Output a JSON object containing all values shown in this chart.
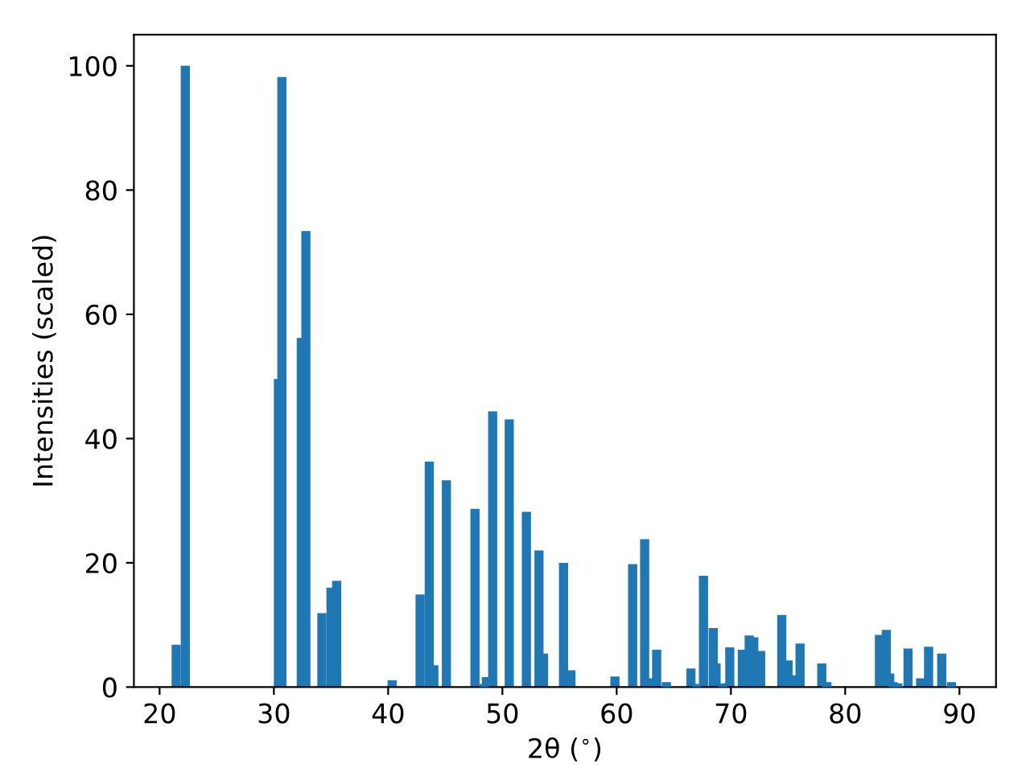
{
  "chart_data": {
    "type": "bar",
    "xlabel": "2θ ($^{∘}$)",
    "ylabel": "Intensities (scaled)",
    "x": [
      21.45,
      22.25,
      30.4,
      30.7,
      32.4,
      32.8,
      34.2,
      35.0,
      35.5,
      40.35,
      42.8,
      43.6,
      44.0,
      45.1,
      47.6,
      48.4,
      48.6,
      49.15,
      50.6,
      52.1,
      53.2,
      53.6,
      55.35,
      56.0,
      59.85,
      61.4,
      62.45,
      62.8,
      63.5,
      64.35,
      66.5,
      67.0,
      67.6,
      68.45,
      68.7,
      69.3,
      69.9,
      71.0,
      71.6,
      72.0,
      72.6,
      74.45,
      75.0,
      75.5,
      76.05,
      77.95,
      78.4,
      83.0,
      83.6,
      83.9,
      84.2,
      84.6,
      85.5,
      86.6,
      87.3,
      88.45,
      89.3
    ],
    "values": [
      6.8,
      100,
      49.6,
      98.2,
      56.2,
      73.4,
      11.9,
      16.0,
      17.1,
      1.1,
      14.9,
      36.3,
      3.5,
      33.3,
      28.7,
      0.5,
      1.6,
      44.4,
      43.1,
      28.2,
      22.0,
      5.4,
      20.0,
      2.7,
      1.7,
      19.8,
      23.8,
      1.4,
      6.0,
      0.8,
      3.0,
      0.5,
      17.9,
      9.5,
      3.8,
      0.6,
      6.4,
      6.0,
      8.3,
      8.0,
      5.8,
      11.6,
      4.3,
      1.9,
      7.0,
      3.8,
      0.8,
      8.4,
      9.2,
      2.2,
      0.8,
      0.6,
      6.2,
      1.4,
      6.5,
      5.4,
      0.8
    ],
    "color": "#1f77b4",
    "xlim": [
      17.75,
      93.2
    ],
    "xticks": [
      20,
      30,
      40,
      50,
      60,
      70,
      80,
      90
    ],
    "ylim": [
      0,
      105
    ],
    "yticks": [
      0,
      20,
      40,
      60,
      80,
      100
    ],
    "grid": false
  }
}
